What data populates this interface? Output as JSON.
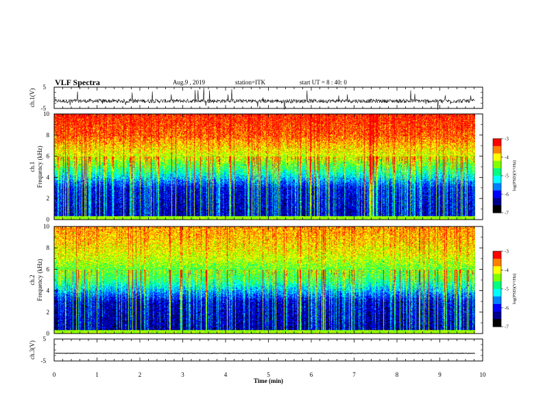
{
  "header": {
    "title": "VLF  Spectra",
    "date": "Aug.9  , 2019",
    "station": "station=ITK",
    "start": "start  UT  =    8 : 40: 0"
  },
  "chart_data": [
    {
      "type": "line",
      "panel": "ch1-waveform",
      "ylabel": "ch.1(V)",
      "ylim": [
        -5,
        5
      ],
      "ytick_labels": [
        "5",
        "-5"
      ],
      "xlim": [
        0,
        10
      ],
      "baseline": -1.5,
      "note_series": "noisy waveform with many spikes to +/-5 V"
    },
    {
      "type": "heatmap",
      "panel": "ch1-spectrogram",
      "ylabel": "ch.1\nFrequency  (kHz)",
      "ylim": [
        0,
        10
      ],
      "ytick_labels": [
        "0",
        "2",
        "4",
        "6",
        "8",
        "10"
      ],
      "xlim": [
        0,
        9.82
      ],
      "colorbar": {
        "label": "log(PSD)(V²/Hz)",
        "range": [
          -7,
          -3
        ],
        "ticks": [
          "-3",
          "-4",
          "-5",
          "-6",
          "-7"
        ]
      },
      "band_profile": [
        {
          "freq_khz": 0,
          "level": -6.5
        },
        {
          "freq_khz": 3,
          "level": -6.3
        },
        {
          "freq_khz": 4.5,
          "level": -5.2
        },
        {
          "freq_khz": 6,
          "level": -4.3
        },
        {
          "freq_khz": 8,
          "level": -3.6
        },
        {
          "freq_khz": 10,
          "level": -3.4
        }
      ]
    },
    {
      "type": "heatmap",
      "panel": "ch2-spectrogram",
      "ylabel": "ch.2\nFrequency  (kHz)",
      "ylim": [
        0,
        10
      ],
      "ytick_labels": [
        "0",
        "2",
        "4",
        "6",
        "8",
        "10"
      ],
      "xlim": [
        0,
        9.82
      ],
      "colorbar": {
        "label": "log(PSD)(V²/Hz)",
        "range": [
          -7,
          -3
        ],
        "ticks": [
          "-3",
          "-4",
          "-5",
          "-6",
          "-7"
        ]
      },
      "band_profile": [
        {
          "freq_khz": 0,
          "level": -6.6
        },
        {
          "freq_khz": 3,
          "level": -6.4
        },
        {
          "freq_khz": 5,
          "level": -5.0
        },
        {
          "freq_khz": 7,
          "level": -4.3
        },
        {
          "freq_khz": 9,
          "level": -3.9
        },
        {
          "freq_khz": 10,
          "level": -3.8
        }
      ]
    },
    {
      "type": "line",
      "panel": "ch3-waveform",
      "ylabel": "ch.3(V)",
      "ylim": [
        -5,
        5
      ],
      "ytick_labels": [
        "5",
        "-5"
      ],
      "xlim": [
        0,
        10
      ],
      "baseline": -1.5
    }
  ],
  "x_axis": {
    "label": "Time  (min)",
    "ticks": [
      "0",
      "1",
      "2",
      "3",
      "4",
      "5",
      "6",
      "7",
      "8",
      "9",
      "10"
    ]
  },
  "colormap": [
    "#000000",
    "#00008b",
    "#0000ff",
    "#0080ff",
    "#00ffff",
    "#00ff80",
    "#80ff00",
    "#ffff00",
    "#ff8000",
    "#ff0000"
  ]
}
